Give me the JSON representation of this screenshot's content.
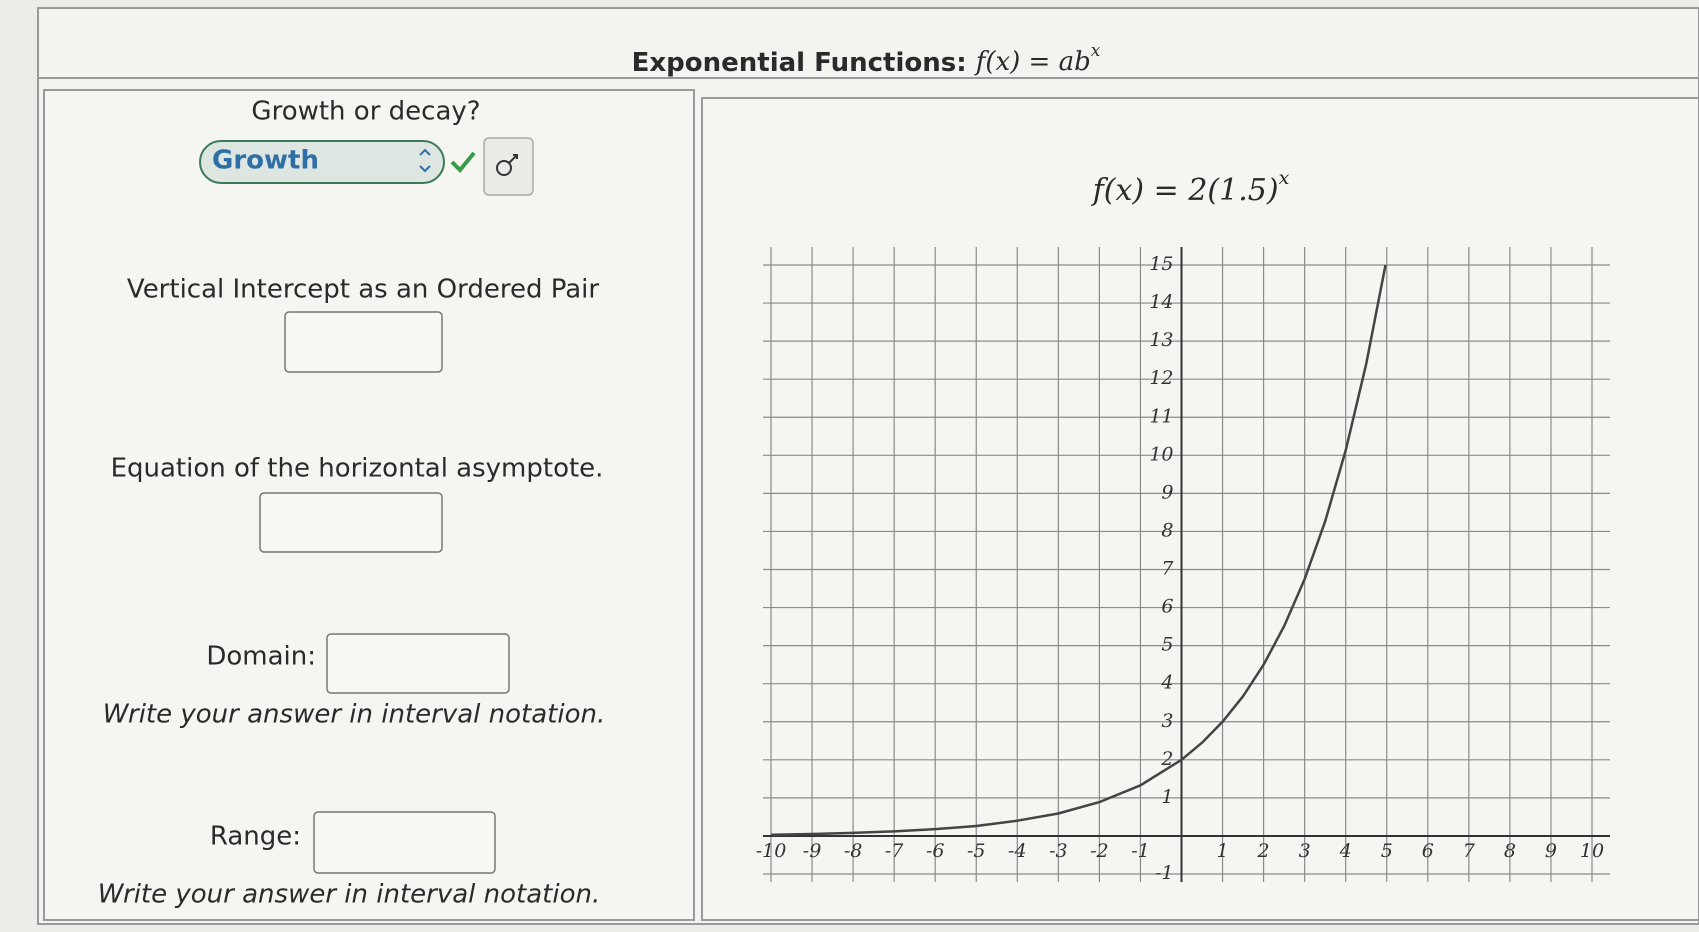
{
  "header": {
    "title": "Exponential Functions:",
    "formula": "f(x) = ab",
    "formula_exponent": "x"
  },
  "left_panel": {
    "growth_question": "Growth or decay?",
    "growth_answer": "Growth",
    "intercept_label": "Vertical Intercept as an Ordered Pair",
    "asymptote_label": "Equation of the horizontal asymptote.",
    "domain_label": "Domain:",
    "domain_hint": "Write your answer in interval notation.",
    "range_label": "Range:",
    "range_hint": "Write your answer in interval notation."
  },
  "right_panel": {
    "equation": "f(x) = 2(1.5)",
    "equation_exponent": "x"
  },
  "graph": {
    "xlim": [
      -10,
      10
    ],
    "ylim": [
      -1,
      15
    ],
    "xticks": [
      -10,
      -9,
      -8,
      -7,
      -6,
      -5,
      -4,
      -3,
      -2,
      -1,
      1,
      2,
      3,
      4,
      5,
      6,
      7,
      8,
      9,
      10
    ],
    "yticks": [
      -1,
      1,
      2,
      3,
      4,
      5,
      6,
      7,
      8,
      9,
      10,
      11,
      12,
      13,
      14,
      15
    ],
    "grid": true,
    "curve": {
      "color": "#444444",
      "x": [
        -10,
        -9,
        -8,
        -7,
        -6,
        -5,
        -4,
        -3,
        -2,
        -1,
        0,
        0.5,
        1,
        1.5,
        2,
        2.5,
        3,
        3.5,
        4,
        4.5,
        4.97
      ],
      "y": [
        0.03,
        0.05,
        0.08,
        0.12,
        0.18,
        0.26,
        0.4,
        0.59,
        0.89,
        1.33,
        2,
        2.45,
        3,
        3.67,
        4.5,
        5.51,
        6.75,
        8.27,
        10.13,
        12.4,
        15
      ]
    }
  }
}
